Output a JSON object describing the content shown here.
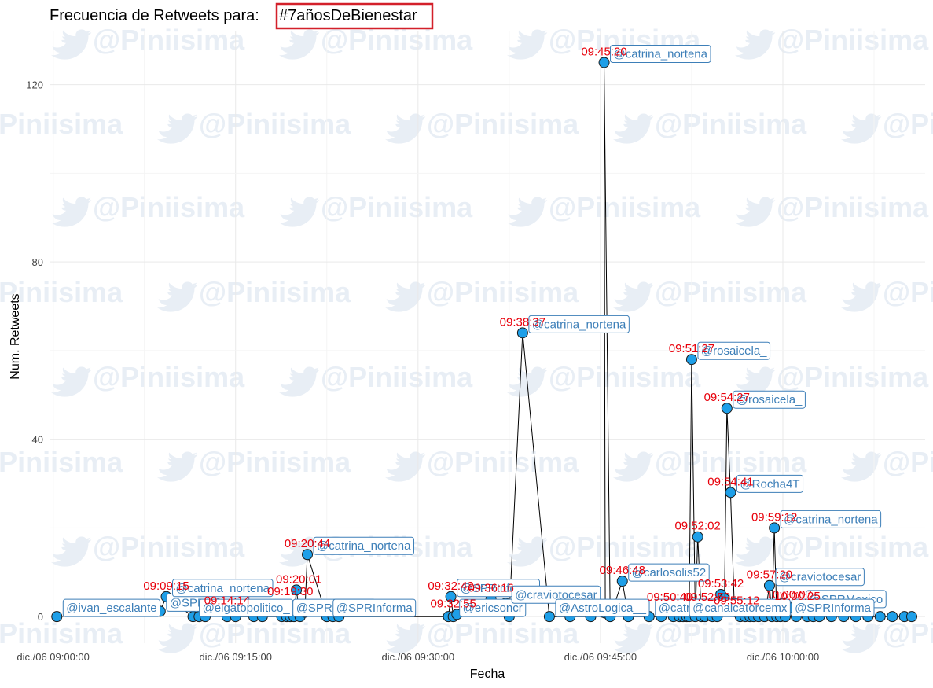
{
  "chart_data": {
    "type": "line",
    "title": "Frecuencia de Retweets para:",
    "hashtag": "#7añosDeBienestar",
    "watermark": "@Piniisima",
    "xlabel": "Fecha",
    "ylabel": "Num. Retweets",
    "x_ticks": [
      "dic./06 09:00:00",
      "dic./06 09:15:00",
      "dic./06 09:30:00",
      "dic./06 09:45:00",
      "dic./06 10:00:00"
    ],
    "y_ticks": [
      "0",
      "40",
      "80",
      "120"
    ],
    "xlim": [
      -0.3,
      71.7
    ],
    "ylim": [
      -6,
      132
    ],
    "grid": true,
    "colors": {
      "point": "#1e9fe8",
      "line": "#000000",
      "time_label": "#e8000b",
      "user_label": "#3d7fb8",
      "hashtag_box": "#d3202a"
    },
    "series": [
      {
        "points": [
          [
            0.3,
            0
          ],
          [
            8.8,
            1.2
          ],
          [
            9.3,
            4.5
          ],
          [
            11.5,
            0
          ],
          [
            12.0,
            0
          ],
          [
            12.5,
            0
          ],
          [
            13.8,
            1.2
          ],
          [
            14.3,
            0
          ],
          [
            15.0,
            0
          ],
          [
            16.5,
            0
          ],
          [
            17.2,
            0
          ],
          [
            18.8,
            0
          ],
          [
            19.2,
            0
          ],
          [
            19.5,
            0
          ],
          [
            19.8,
            0
          ],
          [
            20.0,
            6
          ],
          [
            20.3,
            0
          ],
          [
            20.7,
            1
          ],
          [
            20.9,
            14
          ],
          [
            22.5,
            0
          ],
          [
            23.0,
            0
          ],
          [
            23.5,
            0
          ],
          [
            32.5,
            0
          ],
          [
            32.7,
            4.5
          ],
          [
            32.9,
            0
          ],
          [
            33.2,
            0.5
          ],
          [
            36.0,
            4
          ],
          [
            37.2,
            3
          ],
          [
            37.5,
            0
          ],
          [
            38.6,
            64
          ],
          [
            40.8,
            0
          ],
          [
            42.5,
            0
          ],
          [
            44.2,
            0
          ],
          [
            45.2,
            1
          ],
          [
            45.4,
            0.8
          ],
          [
            45.3,
            125
          ],
          [
            45.8,
            0
          ],
          [
            46.8,
            8
          ],
          [
            47.3,
            0
          ],
          [
            49.0,
            0
          ],
          [
            50.0,
            0
          ],
          [
            50.7,
            2
          ],
          [
            51.0,
            0
          ],
          [
            51.5,
            0
          ],
          [
            51.8,
            0
          ],
          [
            52.1,
            0
          ],
          [
            52.3,
            0
          ],
          [
            52.5,
            58
          ],
          [
            52.8,
            0
          ],
          [
            53.0,
            18
          ],
          [
            53.3,
            0
          ],
          [
            53.6,
            0
          ],
          [
            53.9,
            1
          ],
          [
            54.2,
            0
          ],
          [
            54.6,
            0
          ],
          [
            54.9,
            5
          ],
          [
            55.2,
            4
          ],
          [
            55.4,
            47
          ],
          [
            55.7,
            28
          ],
          [
            56.0,
            3
          ],
          [
            56.2,
            1
          ],
          [
            56.5,
            0
          ],
          [
            56.9,
            0
          ],
          [
            57.3,
            0
          ],
          [
            57.6,
            0
          ],
          [
            58.0,
            0
          ],
          [
            58.5,
            0
          ],
          [
            58.9,
            7
          ],
          [
            59.1,
            0
          ],
          [
            59.3,
            20
          ],
          [
            59.5,
            0
          ],
          [
            59.8,
            0
          ],
          [
            60.0,
            3
          ],
          [
            60.2,
            0
          ],
          [
            60.5,
            2
          ],
          [
            60.8,
            2
          ],
          [
            61.1,
            0
          ],
          [
            61.4,
            2
          ],
          [
            62.0,
            0
          ],
          [
            62.5,
            0
          ],
          [
            63.0,
            0
          ],
          [
            64.0,
            0
          ],
          [
            65.0,
            0
          ],
          [
            66.0,
            0
          ],
          [
            67.0,
            0
          ],
          [
            68.0,
            0
          ],
          [
            69.0,
            0
          ],
          [
            70.0,
            0
          ],
          [
            70.6,
            0
          ]
        ]
      }
    ],
    "time_labels": [
      {
        "text": "09:09:15",
        "x": 9.3,
        "y": 4.5
      },
      {
        "text": "09:14:14",
        "x": 14.3,
        "y": 1.2
      },
      {
        "text": "09:19:30",
        "x": 19.5,
        "y": 3.2
      },
      {
        "text": "09:20:01",
        "x": 20.2,
        "y": 6
      },
      {
        "text": "09:20:44",
        "x": 20.9,
        "y": 14
      },
      {
        "text": "09:32:42",
        "x": 32.7,
        "y": 4.5
      },
      {
        "text": "09:32:55",
        "x": 32.9,
        "y": 0.5
      },
      {
        "text": "09:36:16",
        "x": 36.0,
        "y": 4
      },
      {
        "text": "09:38:37",
        "x": 38.6,
        "y": 64
      },
      {
        "text": "09:45:20",
        "x": 45.3,
        "y": 125
      },
      {
        "text": "09:46:48",
        "x": 46.8,
        "y": 8
      },
      {
        "text": "09:50:40",
        "x": 50.7,
        "y": 2
      },
      {
        "text": "09:51:27",
        "x": 52.5,
        "y": 58
      },
      {
        "text": "09:52:02",
        "x": 53.0,
        "y": 18
      },
      {
        "text": "09:52:59",
        "x": 53.8,
        "y": 2
      },
      {
        "text": "09:53:42",
        "x": 54.9,
        "y": 5
      },
      {
        "text": "09:54:27",
        "x": 55.4,
        "y": 47
      },
      {
        "text": "09:54:41",
        "x": 55.7,
        "y": 28
      },
      {
        "text": "09:55:12",
        "x": 56.2,
        "y": 1.2
      },
      {
        "text": "09:57:20",
        "x": 58.9,
        "y": 7
      },
      {
        "text": "09:59:12",
        "x": 59.3,
        "y": 20
      },
      {
        "text": "10:00:07",
        "x": 60.5,
        "y": 2.5
      },
      {
        "text": "10:00:25",
        "x": 61.2,
        "y": 2.2
      }
    ],
    "user_labels": [
      {
        "text": "@ivan_escalante",
        "x": 0.3,
        "y": 0
      },
      {
        "text": "@SPRInforma",
        "x": 8.8,
        "y": 1.2
      },
      {
        "text": "@catrina_nortena",
        "x": 9.3,
        "y": 4.5
      },
      {
        "text": "@elgatopolitico_",
        "x": 11.5,
        "y": 0
      },
      {
        "text": "@SPRInforma",
        "x": 19.2,
        "y": 0
      },
      {
        "text": "@catrina_nortena",
        "x": 20.9,
        "y": 14
      },
      {
        "text": "@SPRInforma",
        "x": 22.5,
        "y": 0
      },
      {
        "text": "@SPRInforma",
        "x": 32.7,
        "y": 4.5
      },
      {
        "text": "@ericsoncr",
        "x": 32.9,
        "y": 0
      },
      {
        "text": "@craviotocesar",
        "x": 37.2,
        "y": 3
      },
      {
        "text": "@catrina_nortena",
        "x": 38.6,
        "y": 64
      },
      {
        "text": "@AstroLogica__",
        "x": 40.8,
        "y": 0
      },
      {
        "text": "@catrina_nortena",
        "x": 45.3,
        "y": 125
      },
      {
        "text": "@carlosolis52",
        "x": 46.8,
        "y": 8
      },
      {
        "text": "@catrina_nortena",
        "x": 49.0,
        "y": 0
      },
      {
        "text": "@canalcatorcemx",
        "x": 51.8,
        "y": 0
      },
      {
        "text": "@rosaicela_",
        "x": 52.5,
        "y": 58
      },
      {
        "text": "@rosaicela_",
        "x": 55.4,
        "y": 47
      },
      {
        "text": "@Rocha4T",
        "x": 55.7,
        "y": 28
      },
      {
        "text": "@craviotocesar",
        "x": 58.9,
        "y": 7
      },
      {
        "text": "@catrina_nortena",
        "x": 59.3,
        "y": 20
      },
      {
        "text": "@SPRMexico",
        "x": 61.4,
        "y": 2
      },
      {
        "text": "@SPRInforma",
        "x": 60.2,
        "y": 0
      }
    ]
  }
}
